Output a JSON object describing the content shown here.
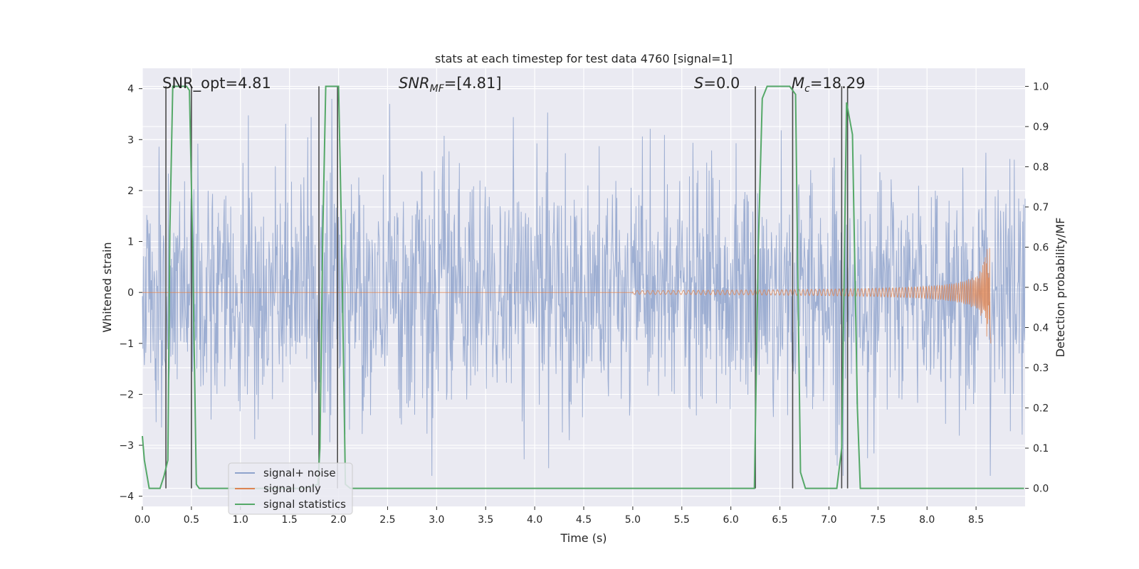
{
  "chart_data": {
    "type": "line",
    "title": "stats at each timestep for test data 4760 [signal=1]",
    "xlabel": "Time (s)",
    "ylabel_left": "Whitened strain",
    "ylabel_right": "Detection probability/MF",
    "xlim": [
      0.0,
      9.0
    ],
    "ylim_left": [
      -4.2,
      4.4
    ],
    "ylim_right": [
      -0.045,
      1.045
    ],
    "x_ticks": [
      "0.0",
      "0.5",
      "1.0",
      "1.5",
      "2.0",
      "2.5",
      "3.0",
      "3.5",
      "4.0",
      "4.5",
      "5.0",
      "5.5",
      "6.0",
      "6.5",
      "7.0",
      "7.5",
      "8.0",
      "8.5"
    ],
    "y_ticks_left": [
      "4",
      "3",
      "2",
      "1",
      "0",
      "−1",
      "−2",
      "−3",
      "−4"
    ],
    "y_ticks_right": [
      "1.0",
      "0.9",
      "0.8",
      "0.7",
      "0.6",
      "0.5",
      "0.4",
      "0.3",
      "0.2",
      "0.1",
      "0.0"
    ],
    "grid": true,
    "legend_position": "lower-left",
    "annotations": {
      "snr_opt": "SNR_opt=4.81",
      "snr_mf_sym": "SNR",
      "snr_mf_sub": "MF",
      "snr_mf_val": "=[4.81]",
      "s_sym": "S",
      "s_val": "=0.0",
      "mc_sym": "M",
      "mc_sub": "c",
      "mc_val": "=18.29"
    },
    "series": [
      {
        "name": "signal+ noise",
        "color": "#8fa3cc",
        "description_values": {
          "t_range": [
            0.0,
            9.0
          ],
          "approx_amplitude_range": [
            -3.6,
            3.8
          ]
        }
      },
      {
        "name": "signal only",
        "color": "#dd8452",
        "chirp": {
          "t_start": 5.0,
          "t_merger": 8.65,
          "peak_amplitude": 0.92,
          "min_amplitude": -1.0
        }
      },
      {
        "name": "signal statistics",
        "color": "#55a868",
        "x": [
          0.0,
          0.02,
          0.07,
          0.18,
          0.22,
          0.26,
          0.28,
          0.31,
          0.35,
          0.45,
          0.48,
          0.51,
          0.55,
          0.58,
          0.62,
          1.65,
          1.79,
          1.81,
          1.84,
          1.87,
          1.91,
          2.0,
          2.03,
          2.07,
          2.12,
          2.2,
          6.2,
          6.24,
          6.28,
          6.32,
          6.37,
          6.6,
          6.66,
          6.68,
          6.71,
          6.76,
          6.82,
          7.08,
          7.13,
          7.18,
          7.24,
          7.29,
          7.32,
          7.4,
          8.99
        ],
        "y": [
          0.13,
          0.07,
          0.0,
          0.0,
          0.03,
          0.07,
          0.64,
          1.0,
          1.0,
          1.0,
          0.99,
          0.63,
          0.01,
          0.0,
          0.0,
          0.0,
          0.01,
          0.1,
          0.64,
          1.0,
          1.0,
          1.0,
          0.64,
          0.01,
          0.0,
          0.0,
          0.0,
          0.0,
          0.6,
          0.97,
          1.0,
          1.0,
          0.98,
          0.57,
          0.04,
          0.0,
          0.0,
          0.0,
          0.1,
          0.96,
          0.88,
          0.2,
          0.0,
          0.0,
          0.0
        ]
      }
    ],
    "vertical_markers_s": [
      0.24,
      0.5,
      1.8,
      1.99,
      6.25,
      6.63,
      7.13,
      7.19
    ]
  }
}
